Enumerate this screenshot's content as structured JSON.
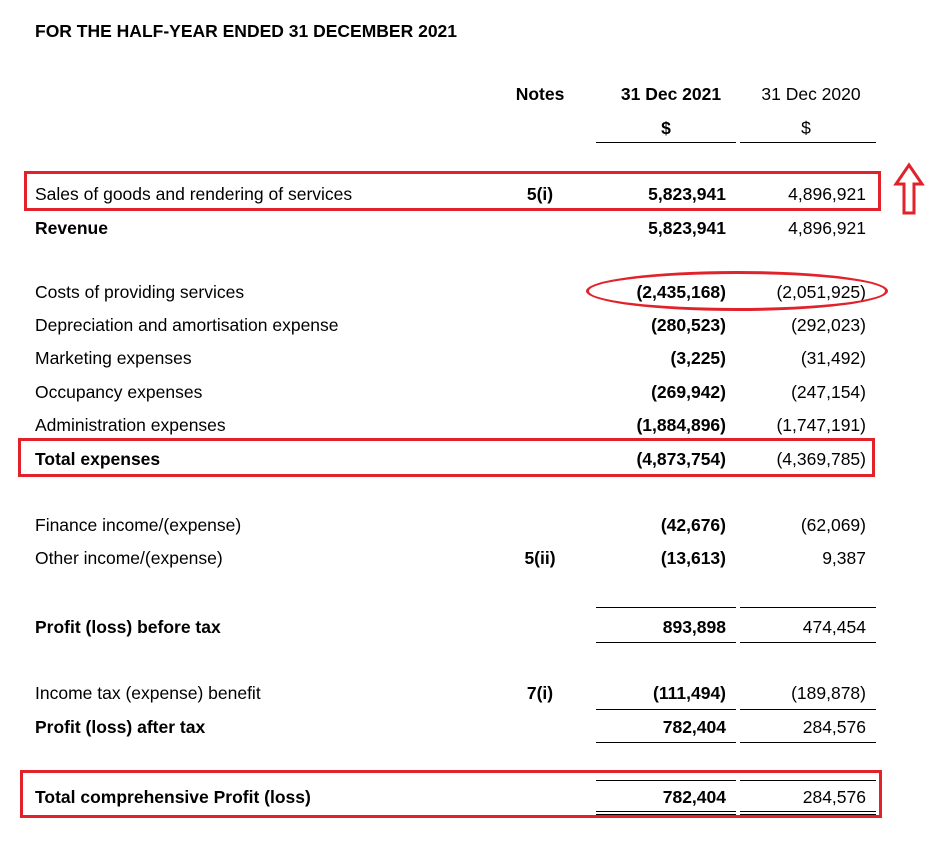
{
  "title": "FOR THE HALF-YEAR ENDED 31 DECEMBER 2021",
  "headers": {
    "notes": "Notes",
    "current": "31 Dec 2021",
    "prior": "31 Dec 2020",
    "current_unit": "$",
    "prior_unit": "$"
  },
  "rows": {
    "sales": {
      "label": "Sales of goods and rendering of services",
      "note": "5(i)",
      "current": "5,823,941",
      "prior": "4,896,921"
    },
    "revenue": {
      "label": "Revenue",
      "current": "5,823,941",
      "prior": "4,896,921"
    },
    "costs": {
      "label": "Costs of providing services",
      "current": "(2,435,168)",
      "prior": "(2,051,925)"
    },
    "depreciation": {
      "label": "Depreciation and amortisation expense",
      "current": "(280,523)",
      "prior": "(292,023)"
    },
    "marketing": {
      "label": "Marketing expenses",
      "current": "(3,225)",
      "prior": "(31,492)"
    },
    "occupancy": {
      "label": "Occupancy expenses",
      "current": "(269,942)",
      "prior": "(247,154)"
    },
    "admin": {
      "label": "Administration expenses",
      "current": "(1,884,896)",
      "prior": "(1,747,191)"
    },
    "total_exp": {
      "label": "Total expenses",
      "current": "(4,873,754)",
      "prior": "(4,369,785)"
    },
    "finance": {
      "label": "Finance income/(expense)",
      "current": "(42,676)",
      "prior": "(62,069)"
    },
    "other": {
      "label": "Other income/(expense)",
      "note": "5(ii)",
      "current": "(13,613)",
      "prior": "9,387"
    },
    "pbt": {
      "label": "Profit (loss) before tax",
      "current": "893,898",
      "prior": "474,454"
    },
    "tax": {
      "label": "Income tax (expense) benefit",
      "note": "7(i)",
      "current": "(111,494)",
      "prior": "(189,878)"
    },
    "pat": {
      "label": "Profit (loss) after tax",
      "current": "782,404",
      "prior": "284,576"
    },
    "tcp": {
      "label": "Total comprehensive Profit (loss)",
      "current": "782,404",
      "prior": "284,576"
    }
  },
  "annotation_color": "#e1222b",
  "annotation_icon": "up-arrow-icon"
}
